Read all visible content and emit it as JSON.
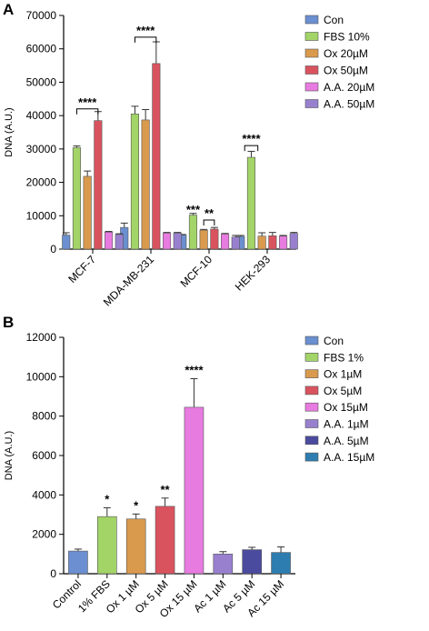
{
  "chart_data": [
    {
      "panel_label": "A",
      "type": "bar",
      "ylabel": "DNA (A.U.)",
      "ylim": [
        0,
        70000
      ],
      "yticks": [
        "0",
        "10000",
        "20000",
        "30000",
        "40000",
        "50000",
        "60000",
        "70000"
      ],
      "categories": [
        "MCF-7",
        "MDA-MB-231",
        "MCF-10",
        "HEK-293"
      ],
      "legend_position": "top-right",
      "series": [
        {
          "name": "Con",
          "color": "#6b8fd0",
          "values": [
            4200,
            6500,
            4200,
            3800
          ],
          "errors": [
            700,
            1300,
            200,
            300
          ]
        },
        {
          "name": "FBS 10%",
          "color": "#a3d468",
          "values": [
            30400,
            40500,
            10200,
            27500
          ],
          "errors": [
            500,
            2300,
            500,
            1800
          ]
        },
        {
          "name": "Ox 20µM",
          "color": "#d99a4e",
          "values": [
            21800,
            38700,
            5700,
            3900
          ],
          "errors": [
            1600,
            3100,
            200,
            1000
          ]
        },
        {
          "name": "Ox 50µM",
          "color": "#d9535e",
          "values": [
            38500,
            55600,
            6000,
            4000
          ],
          "errors": [
            2700,
            6500,
            500,
            1000
          ]
        },
        {
          "name": "A.A. 20µM",
          "color": "#e77be0",
          "values": [
            5100,
            4800,
            4500,
            3900
          ],
          "errors": [
            200,
            200,
            200,
            200
          ]
        },
        {
          "name": "A.A. 50µM",
          "color": "#9880cf",
          "values": [
            4400,
            4800,
            3600,
            4700
          ],
          "errors": [
            200,
            200,
            500,
            300
          ]
        }
      ],
      "annotations": [
        {
          "text": "****",
          "group": 0,
          "from_series": 1,
          "to_series": 3,
          "y": 42000
        },
        {
          "text": "****",
          "group": 1,
          "from_series": 1,
          "to_series": 3,
          "y": 63500
        },
        {
          "text": "***",
          "group": 2,
          "series": 1,
          "y": 11200
        },
        {
          "text": "**",
          "group": 2,
          "from_series": 2,
          "to_series": 3,
          "y": 8700
        },
        {
          "text": "****",
          "group": 3,
          "from_series": 1,
          "to_series": 1,
          "y": 31000
        }
      ]
    },
    {
      "panel_label": "B",
      "type": "bar",
      "ylabel": "DNA (A.U.)",
      "ylim": [
        0,
        12000
      ],
      "yticks": [
        "0",
        "2000",
        "4000",
        "6000",
        "8000",
        "10000",
        "12000"
      ],
      "categories": [
        "Control",
        "1% FBS",
        "Ox 1 µM",
        "Ox 5 µM",
        "Ox 15 µM",
        "Ac 1 µM",
        "Ac 5 µM",
        "Ac 15 µM"
      ],
      "legend_position": "top-right",
      "legend": [
        "Con",
        "FBS 1%",
        "Ox 1µM",
        "Ox 5µM",
        "Ox 15µM",
        "A.A. 1µM",
        "A.A. 5µM",
        "A.A. 15µM"
      ],
      "colors": [
        "#6b8fd0",
        "#a3d468",
        "#d99a4e",
        "#d9535e",
        "#e77be0",
        "#9880cf",
        "#4a4b9e",
        "#2e7db0"
      ],
      "values": [
        1150,
        2900,
        2780,
        3420,
        8450,
        1000,
        1220,
        1080
      ],
      "errors": [
        100,
        450,
        250,
        420,
        1450,
        120,
        120,
        280
      ],
      "annotations": [
        "",
        "*",
        "*",
        "**",
        "****",
        "",
        "",
        ""
      ]
    }
  ]
}
